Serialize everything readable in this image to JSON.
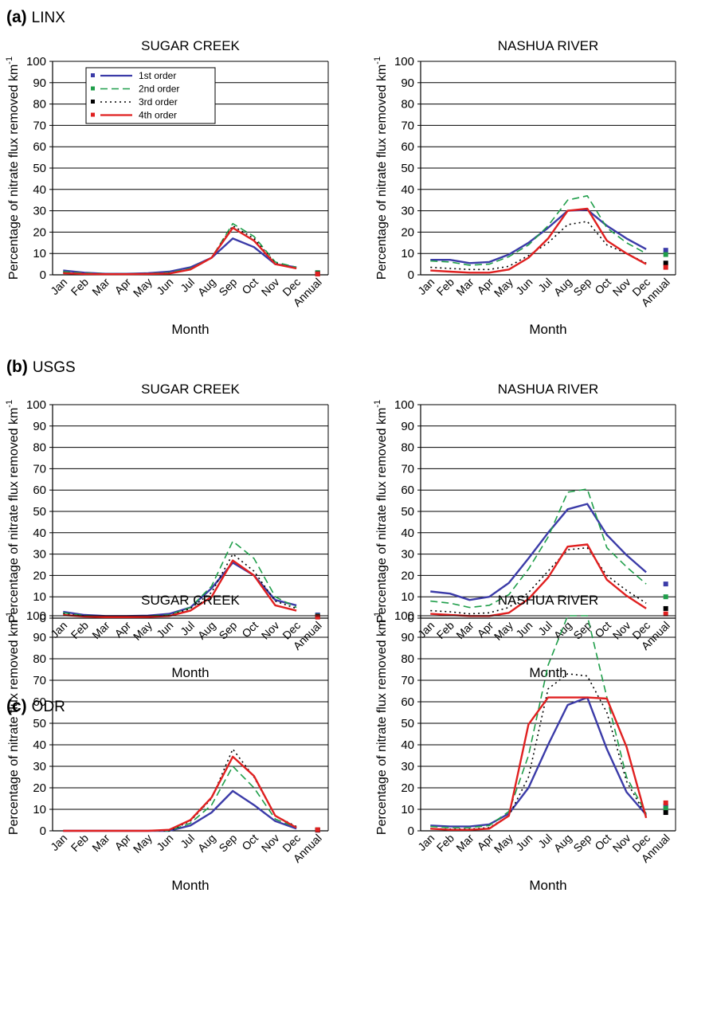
{
  "panels": [
    {
      "letter": "(a)",
      "source": "LINX"
    },
    {
      "letter": "(b)",
      "source": "USGS"
    },
    {
      "letter": "(c)",
      "source": "ODR"
    }
  ],
  "chart_data": [
    {
      "type": "line",
      "panel": "(a) LINX",
      "title": "SUGAR CREEK",
      "xlabel": "Month",
      "ylabel": "Percentage of nitrate flux removed km",
      "ylabel_superscript": "-1",
      "ylim": [
        0,
        100
      ],
      "yticks": [
        0,
        10,
        20,
        30,
        40,
        50,
        60,
        70,
        80,
        90,
        100
      ],
      "grid": "horizontal",
      "legend_position": "top-left",
      "categories": [
        "Jan",
        "Feb",
        "Mar",
        "Apr",
        "May",
        "Jun",
        "Jul",
        "Aug",
        "Sep",
        "Oct",
        "Nov",
        "Dec"
      ],
      "annual_label": "Annual",
      "series": [
        {
          "name": "1st order",
          "color": "#3b3ba8",
          "dash": "solid",
          "values": [
            2,
            1,
            0.5,
            0.5,
            0.8,
            1.5,
            3.5,
            8,
            17,
            13,
            5,
            3.5
          ],
          "annual": 1
        },
        {
          "name": "2nd order",
          "color": "#1f9e4a",
          "dash": "dashed",
          "values": [
            1.5,
            0.8,
            0.5,
            0.5,
            0.6,
            1,
            3,
            8,
            24,
            18,
            6,
            3.5
          ],
          "annual": 1
        },
        {
          "name": "3rd order",
          "color": "#000000",
          "dash": "dotted",
          "values": [
            1,
            0.5,
            0.4,
            0.4,
            0.5,
            0.8,
            2.5,
            8,
            23,
            17,
            5.5,
            3
          ],
          "annual": 0.5
        },
        {
          "name": "4th order",
          "color": "#e02020",
          "dash": "solid",
          "values": [
            0.8,
            0.4,
            0.3,
            0.3,
            0.4,
            0.6,
            2.5,
            8,
            22,
            16,
            5,
            3
          ],
          "annual": 0.4
        }
      ]
    },
    {
      "type": "line",
      "panel": "(a) LINX",
      "title": "NASHUA RIVER",
      "xlabel": "Month",
      "ylabel": "Percentage of nitrate flux removed km",
      "ylabel_superscript": "-1",
      "ylim": [
        0,
        100
      ],
      "yticks": [
        0,
        10,
        20,
        30,
        40,
        50,
        60,
        70,
        80,
        90,
        100
      ],
      "grid": "horizontal",
      "categories": [
        "Jan",
        "Feb",
        "Mar",
        "Apr",
        "May",
        "Jun",
        "Jul",
        "Aug",
        "Sep",
        "Oct",
        "Nov",
        "Dec"
      ],
      "annual_label": "Annual",
      "series": [
        {
          "name": "1st order",
          "color": "#3b3ba8",
          "dash": "solid",
          "values": [
            7,
            7,
            5.5,
            6,
            9.5,
            15,
            22,
            30,
            30.5,
            23,
            17,
            12
          ],
          "annual": 11.5
        },
        {
          "name": "2nd order",
          "color": "#1f9e4a",
          "dash": "dashed",
          "values": [
            6.5,
            6,
            4.5,
            5,
            8.5,
            14,
            23,
            35,
            37,
            22,
            15,
            10
          ],
          "annual": 9.5
        },
        {
          "name": "3rd order",
          "color": "#000000",
          "dash": "dotted",
          "values": [
            3.5,
            3,
            2.5,
            2.5,
            4,
            9,
            15,
            23.5,
            25,
            14,
            10,
            5.5
          ],
          "annual": 5.5
        },
        {
          "name": "4th order",
          "color": "#e02020",
          "dash": "solid",
          "values": [
            2,
            1.5,
            1,
            1,
            2.5,
            8,
            17,
            30,
            31,
            16,
            10,
            5
          ],
          "annual": 3.5
        }
      ]
    },
    {
      "type": "line",
      "panel": "(b) USGS",
      "title": "SUGAR CREEK",
      "xlabel": "Month",
      "ylabel": "Percentage of nitrate flux removed km",
      "ylabel_superscript": "-1",
      "ylim": [
        0,
        100
      ],
      "yticks": [
        0,
        10,
        20,
        30,
        40,
        50,
        60,
        70,
        80,
        90,
        100
      ],
      "grid": "horizontal",
      "categories": [
        "Jan",
        "Feb",
        "Mar",
        "Apr",
        "May",
        "Jun",
        "Jul",
        "Aug",
        "Sep",
        "Oct",
        "Nov",
        "Dec"
      ],
      "annual_label": "Annual",
      "series": [
        {
          "name": "1st order",
          "color": "#3b3ba8",
          "dash": "solid",
          "values": [
            3,
            1.5,
            1,
            1,
            1.2,
            2,
            5,
            14,
            26,
            20,
            8.5,
            6
          ],
          "annual": 1.5
        },
        {
          "name": "2nd order",
          "color": "#1f9e4a",
          "dash": "dashed",
          "values": [
            2.5,
            1.2,
            0.8,
            0.8,
            1,
            1.5,
            5,
            15,
            36,
            28,
            10,
            5
          ],
          "annual": 1
        },
        {
          "name": "3rd order",
          "color": "#000000",
          "dash": "dotted",
          "values": [
            2,
            1,
            0.6,
            0.6,
            0.8,
            1.2,
            4.5,
            12,
            30,
            22,
            8,
            4.5
          ],
          "annual": 0.8
        },
        {
          "name": "4th order",
          "color": "#e02020",
          "dash": "solid",
          "values": [
            1.5,
            0.8,
            0.5,
            0.5,
            0.6,
            1,
            3.5,
            10,
            27,
            20,
            6,
            3.5
          ],
          "annual": 0.5
        }
      ]
    },
    {
      "type": "line",
      "panel": "(b) USGS",
      "title": "NASHUA RIVER",
      "xlabel": "Month",
      "ylabel": "Percentage of nitrate flux removed km",
      "ylabel_superscript": "-1",
      "ylim": [
        0,
        100
      ],
      "yticks": [
        0,
        10,
        20,
        30,
        40,
        50,
        60,
        70,
        80,
        90,
        100
      ],
      "grid": "horizontal",
      "categories": [
        "Jan",
        "Feb",
        "Mar",
        "Apr",
        "May",
        "Jun",
        "Jul",
        "Aug",
        "Sep",
        "Oct",
        "Nov",
        "Dec"
      ],
      "annual_label": "Annual",
      "series": [
        {
          "name": "1st order",
          "color": "#3b3ba8",
          "dash": "solid",
          "values": [
            12.5,
            11.5,
            8.5,
            10,
            16.5,
            28,
            40,
            51,
            53.5,
            39,
            29.5,
            21.5
          ],
          "annual": 16
        },
        {
          "name": "2nd order",
          "color": "#1f9e4a",
          "dash": "dashed",
          "values": [
            8,
            7,
            5,
            6,
            11,
            23,
            38,
            59,
            60.5,
            33,
            24,
            16
          ],
          "annual": 10
        },
        {
          "name": "3rd order",
          "color": "#000000",
          "dash": "dotted",
          "values": [
            3.5,
            3,
            2,
            2.5,
            5,
            12,
            22,
            32,
            33,
            20,
            13,
            7
          ],
          "annual": 4.5
        },
        {
          "name": "4th order",
          "color": "#e02020",
          "dash": "solid",
          "values": [
            2,
            1.5,
            1,
            1,
            2.5,
            9,
            19,
            33.5,
            34.5,
            18,
            10.5,
            4.5
          ],
          "annual": 2
        }
      ]
    },
    {
      "type": "line",
      "panel": "(c) ODR",
      "title": "SUGAR CREEK",
      "xlabel": "Month",
      "ylabel": "Percentage of nitrate flux removed km",
      "ylabel_superscript": "-1",
      "ylim": [
        0,
        100
      ],
      "yticks": [
        0,
        10,
        20,
        30,
        40,
        50,
        60,
        70,
        80,
        90,
        100
      ],
      "grid": "horizontal",
      "categories": [
        "Jan",
        "Feb",
        "Mar",
        "Apr",
        "May",
        "Jun",
        "Jul",
        "Aug",
        "Sep",
        "Oct",
        "Nov",
        "Dec"
      ],
      "annual_label": "Annual",
      "series": [
        {
          "name": "1st order",
          "color": "#3b3ba8",
          "dash": "solid",
          "values": [
            0,
            0,
            0,
            0,
            0,
            0,
            2.5,
            8.5,
            18.5,
            12,
            4.5,
            1
          ],
          "annual": 0.3
        },
        {
          "name": "2nd order",
          "color": "#1f9e4a",
          "dash": "dashed",
          "values": [
            0,
            0,
            0,
            0,
            0,
            0,
            3.5,
            12,
            30,
            20,
            5.5,
            1.5
          ],
          "annual": 0.4
        },
        {
          "name": "3rd order",
          "color": "#000000",
          "dash": "dotted",
          "values": [
            0,
            0,
            0,
            0,
            0,
            0,
            4.5,
            15,
            38,
            25,
            7,
            2
          ],
          "annual": 0.4
        },
        {
          "name": "4th order",
          "color": "#e02020",
          "dash": "solid",
          "values": [
            0,
            0,
            0,
            0,
            0,
            0.5,
            5,
            15.5,
            34.5,
            25.5,
            7,
            1.5
          ],
          "annual": 0.5
        }
      ]
    },
    {
      "type": "line",
      "panel": "(c) ODR",
      "title": "NASHUA RIVER",
      "xlabel": "Month",
      "ylabel": "Percentage of nitrate flux removed km",
      "ylabel_superscript": "-1",
      "ylim": [
        0,
        100
      ],
      "yticks": [
        0,
        10,
        20,
        30,
        40,
        50,
        60,
        70,
        80,
        90,
        100
      ],
      "grid": "horizontal",
      "categories": [
        "Jan",
        "Feb",
        "Mar",
        "Apr",
        "May",
        "Jun",
        "Jul",
        "Aug",
        "Sep",
        "Oct",
        "Nov",
        "Dec"
      ],
      "annual_label": "Annual",
      "series": [
        {
          "name": "1st order",
          "color": "#3b3ba8",
          "dash": "solid",
          "values": [
            2.5,
            2,
            2,
            3,
            8,
            20,
            40,
            58.5,
            62,
            38,
            18,
            7.5
          ],
          "annual": 11.5
        },
        {
          "name": "2nd order",
          "color": "#1f9e4a",
          "dash": "dashed",
          "values": [
            2,
            1.5,
            1.5,
            2.5,
            9,
            35,
            77,
            100,
            100,
            62,
            25,
            8
          ],
          "annual": 10.5
        },
        {
          "name": "3rd order",
          "color": "#000000",
          "dash": "dotted",
          "values": [
            1,
            0.8,
            0.8,
            1.5,
            7,
            25,
            66,
            73,
            72,
            55,
            23,
            7
          ],
          "annual": 8.5
        },
        {
          "name": "4th order",
          "color": "#e02020",
          "dash": "solid",
          "values": [
            1,
            0.5,
            0.5,
            1,
            7,
            49.5,
            62,
            62,
            62,
            61.5,
            39,
            6
          ],
          "annual": 13
        }
      ]
    }
  ]
}
